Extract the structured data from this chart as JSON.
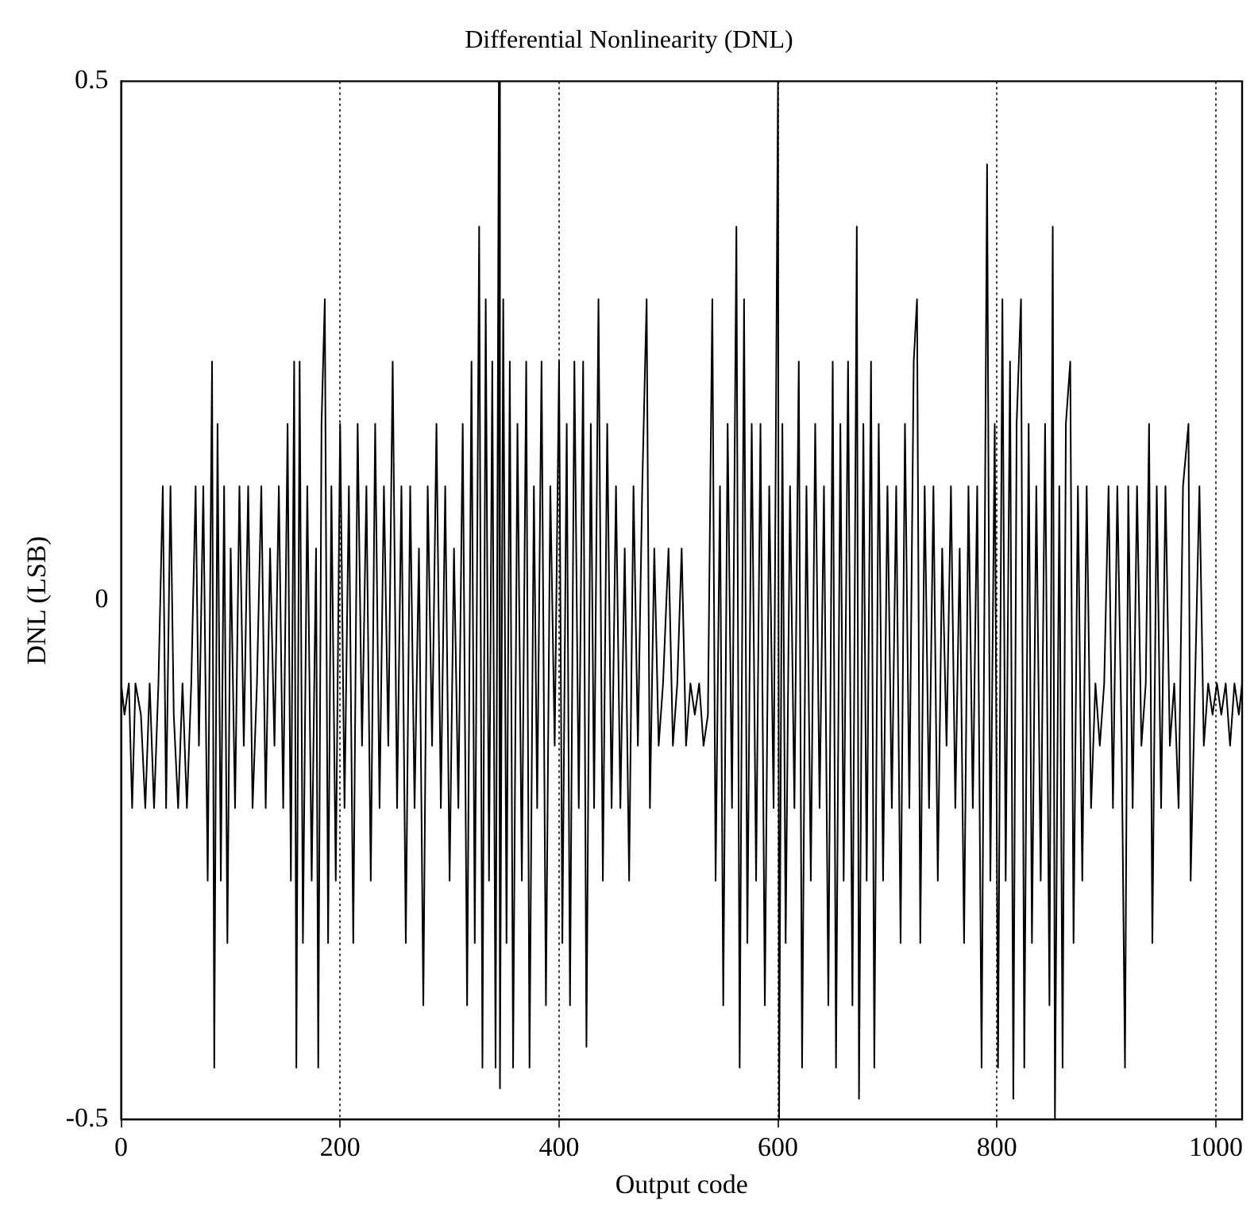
{
  "chart_data": {
    "type": "line",
    "title": "Differential Nonlinearity (DNL)",
    "xlabel": "Output code",
    "ylabel": "DNL (LSB)",
    "color": "#000000",
    "grid": "x",
    "line_style": "solid",
    "xlim": [
      0,
      1024
    ],
    "xticks": [
      0,
      200,
      400,
      600,
      800,
      1000
    ],
    "ylim": [
      -0.5,
      0.5
    ],
    "yticks": [
      -0.5,
      0,
      0.5
    ],
    "x": [
      0,
      3,
      7,
      10,
      13,
      18,
      22,
      26,
      30,
      34,
      38,
      41,
      45,
      48,
      52,
      56,
      60,
      64,
      68,
      71,
      75,
      79,
      83,
      85,
      88,
      91,
      94,
      97,
      100,
      104,
      108,
      112,
      116,
      120,
      124,
      128,
      132,
      136,
      140,
      144,
      148,
      152,
      155,
      158,
      160,
      163,
      166,
      170,
      174,
      178,
      180,
      183,
      186,
      189,
      192,
      196,
      200,
      204,
      208,
      212,
      216,
      220,
      224,
      228,
      232,
      236,
      240,
      244,
      248,
      252,
      256,
      260,
      264,
      268,
      272,
      276,
      280,
      284,
      288,
      292,
      296,
      300,
      304,
      308,
      312,
      316,
      320,
      323,
      327,
      330,
      333,
      336,
      339,
      342,
      345,
      346,
      349,
      352,
      355,
      358,
      362,
      366,
      370,
      373,
      377,
      380,
      384,
      388,
      392,
      396,
      400,
      403,
      407,
      410,
      414,
      418,
      422,
      425,
      429,
      432,
      436,
      440,
      444,
      448,
      452,
      456,
      460,
      464,
      468,
      472,
      476,
      480,
      483,
      487,
      491,
      495,
      500,
      504,
      508,
      512,
      516,
      520,
      524,
      528,
      532,
      536,
      540,
      543,
      547,
      550,
      554,
      558,
      562,
      565,
      569,
      572,
      576,
      580,
      584,
      588,
      592,
      596,
      600,
      601,
      604,
      607,
      611,
      615,
      619,
      622,
      626,
      630,
      634,
      638,
      642,
      646,
      650,
      653,
      657,
      660,
      664,
      668,
      672,
      674,
      678,
      681,
      685,
      688,
      692,
      696,
      700,
      704,
      708,
      712,
      716,
      720,
      724,
      727,
      730,
      734,
      738,
      742,
      746,
      750,
      754,
      758,
      762,
      766,
      770,
      774,
      778,
      782,
      786,
      791,
      794,
      798,
      801,
      805,
      808,
      812,
      815,
      818,
      822,
      825,
      829,
      832,
      836,
      840,
      844,
      848,
      851,
      853,
      857,
      860,
      863,
      867,
      870,
      874,
      878,
      882,
      886,
      890,
      894,
      898,
      902,
      906,
      910,
      914,
      917,
      920,
      924,
      928,
      932,
      936,
      939,
      942,
      946,
      950,
      954,
      958,
      962,
      966,
      970,
      975,
      977,
      981,
      985,
      989,
      993,
      997,
      1001,
      1005,
      1009,
      1013,
      1017,
      1021,
      1024
    ],
    "values": [
      -0.08,
      -0.11,
      -0.08,
      -0.2,
      -0.08,
      -0.11,
      -0.2,
      -0.08,
      -0.2,
      -0.08,
      0.11,
      -0.2,
      0.11,
      -0.11,
      -0.2,
      -0.08,
      -0.2,
      -0.08,
      0.11,
      -0.14,
      0.11,
      -0.27,
      0.23,
      -0.45,
      0.17,
      -0.27,
      0.11,
      -0.33,
      0.05,
      -0.2,
      0.11,
      -0.14,
      0.11,
      -0.2,
      -0.08,
      0.11,
      -0.2,
      0.05,
      -0.14,
      0.11,
      -0.2,
      0.17,
      -0.27,
      0.23,
      -0.45,
      0.23,
      -0.33,
      0.11,
      -0.27,
      0.05,
      -0.45,
      0.17,
      0.29,
      -0.33,
      0.11,
      -0.27,
      0.17,
      -0.2,
      0.11,
      -0.33,
      0.17,
      -0.14,
      0.11,
      -0.27,
      0.17,
      -0.2,
      0.11,
      -0.14,
      0.23,
      -0.2,
      0.11,
      -0.33,
      0.11,
      -0.2,
      0.05,
      -0.39,
      0.11,
      -0.14,
      0.17,
      -0.2,
      0.11,
      -0.27,
      0.05,
      -0.2,
      0.17,
      -0.39,
      0.23,
      -0.33,
      0.36,
      -0.45,
      0.29,
      -0.27,
      0.23,
      -0.45,
      0.5,
      -0.47,
      0.29,
      -0.33,
      0.23,
      -0.45,
      0.17,
      -0.27,
      0.23,
      -0.45,
      0.11,
      -0.2,
      0.23,
      -0.39,
      0.11,
      -0.14,
      0.23,
      -0.33,
      0.17,
      -0.39,
      0.23,
      -0.2,
      0.23,
      -0.43,
      0.17,
      -0.2,
      0.29,
      -0.27,
      0.17,
      -0.2,
      0.11,
      -0.2,
      0.05,
      -0.27,
      0.11,
      -0.14,
      0.11,
      0.29,
      -0.2,
      0.05,
      -0.14,
      -0.08,
      0.05,
      -0.14,
      -0.08,
      0.05,
      -0.14,
      -0.08,
      -0.11,
      -0.08,
      -0.14,
      -0.11,
      0.29,
      -0.27,
      0.11,
      -0.39,
      0.17,
      -0.2,
      0.36,
      -0.45,
      0.29,
      -0.33,
      0.17,
      -0.27,
      0.17,
      -0.39,
      0.11,
      -0.2,
      0.5,
      -0.5,
      0.17,
      -0.33,
      0.11,
      -0.2,
      0.23,
      -0.45,
      0.11,
      -0.27,
      0.17,
      -0.2,
      0.11,
      -0.39,
      0.23,
      -0.45,
      0.17,
      -0.27,
      0.23,
      -0.39,
      0.36,
      -0.48,
      0.17,
      -0.27,
      0.23,
      -0.45,
      0.17,
      -0.27,
      0.11,
      -0.2,
      0.11,
      -0.33,
      0.17,
      -0.2,
      0.23,
      0.29,
      -0.33,
      0.11,
      -0.2,
      0.11,
      -0.27,
      0.05,
      -0.14,
      0.11,
      -0.2,
      0.05,
      -0.33,
      0.11,
      -0.2,
      0.11,
      -0.45,
      0.42,
      -0.27,
      0.17,
      -0.45,
      0.29,
      -0.27,
      0.23,
      -0.48,
      0.17,
      0.29,
      -0.45,
      0.17,
      -0.33,
      0.11,
      -0.27,
      0.17,
      -0.39,
      0.36,
      -0.5,
      0.11,
      -0.45,
      0.17,
      0.23,
      -0.33,
      0.11,
      -0.27,
      0.11,
      -0.2,
      -0.08,
      -0.14,
      -0.08,
      0.11,
      -0.2,
      0.11,
      -0.14,
      -0.45,
      0.11,
      -0.2,
      0.11,
      -0.14,
      -0.08,
      0.17,
      -0.33,
      0.11,
      -0.2,
      0.11,
      -0.14,
      -0.08,
      -0.2,
      0.11,
      0.17,
      -0.27,
      -0.08,
      0.11,
      -0.14,
      -0.08,
      -0.11,
      -0.08,
      -0.11,
      -0.08,
      -0.14,
      -0.08,
      -0.11,
      -0.08
    ]
  }
}
